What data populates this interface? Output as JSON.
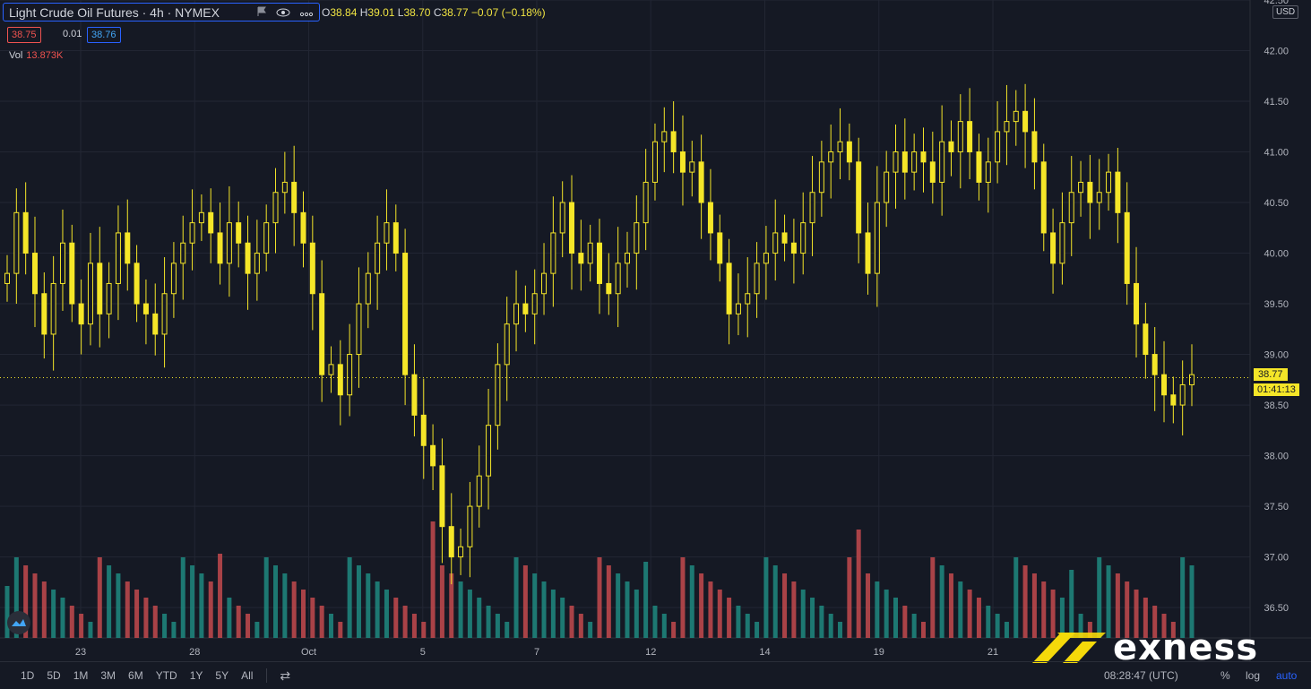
{
  "header": {
    "symbol_title": "Light Crude Oil Futures · 4h · NYMEX",
    "ohlc": {
      "o_label": "O",
      "o": "38.84",
      "h_label": "H",
      "h": "39.01",
      "l_label": "L",
      "l": "38.70",
      "c_label": "C",
      "c": "38.77",
      "change": "−0.07 (−0.18%)"
    },
    "bid": "38.75",
    "spread": "0.01",
    "ask": "38.76",
    "vol_label": "Vol",
    "vol_value": "13.873K",
    "currency": "USD"
  },
  "markers": {
    "last_price": "38.77",
    "countdown": "01:41:13"
  },
  "bottom_bar": {
    "ranges": [
      "1D",
      "5D",
      "1M",
      "3M",
      "6M",
      "YTD",
      "1Y",
      "5Y",
      "All"
    ],
    "clock": "08:28:47 (UTC)",
    "percent": "%",
    "log": "log",
    "auto": "auto"
  },
  "branding": {
    "watermark": "exness",
    "brand_color": "#f5d90a"
  },
  "colors": {
    "up": "#f5e628",
    "down": "#f5e628",
    "vol_up": "#1f8a80",
    "vol_down": "#c34a4e",
    "bg": "#151924",
    "grid": "#222633",
    "axis_text": "#b2b5be"
  },
  "chart_data": {
    "type": "candlestick",
    "title": "Light Crude Oil Futures · 4h · NYMEX",
    "ylim": [
      36.2,
      42.5
    ],
    "y_ticks": [
      "42.50",
      "42.00",
      "41.50",
      "41.00",
      "40.50",
      "40.00",
      "39.50",
      "39.00",
      "38.50",
      "38.00",
      "37.50",
      "37.00",
      "36.50"
    ],
    "x_ticks": [
      "23",
      "28",
      "Oct",
      "5",
      "7",
      "12",
      "14",
      "19",
      "21"
    ],
    "closes": [
      39.8,
      40.4,
      40.0,
      39.6,
      39.2,
      39.7,
      40.1,
      39.5,
      39.3,
      39.9,
      39.4,
      39.7,
      40.2,
      39.9,
      39.5,
      39.4,
      39.2,
      39.6,
      39.9,
      40.1,
      40.3,
      40.4,
      40.2,
      39.9,
      40.3,
      40.1,
      39.8,
      40.0,
      40.3,
      40.6,
      40.7,
      40.4,
      40.1,
      39.6,
      38.8,
      38.9,
      38.6,
      39.0,
      39.5,
      39.8,
      40.1,
      40.3,
      40.0,
      38.8,
      38.4,
      38.1,
      37.9,
      37.3,
      37.0,
      37.1,
      37.5,
      37.8,
      38.3,
      38.9,
      39.3,
      39.5,
      39.4,
      39.6,
      39.8,
      40.2,
      40.5,
      40.0,
      39.9,
      40.1,
      39.7,
      39.6,
      39.9,
      40.0,
      40.3,
      40.7,
      41.1,
      41.2,
      41.0,
      40.8,
      40.9,
      40.5,
      40.2,
      39.9,
      39.4,
      39.5,
      39.6,
      39.9,
      40.0,
      40.2,
      40.1,
      40.0,
      40.3,
      40.6,
      40.9,
      41.0,
      41.1,
      40.9,
      40.2,
      39.8,
      40.5,
      40.8,
      41.0,
      40.8,
      41.0,
      40.9,
      40.7,
      41.1,
      41.0,
      41.3,
      41.0,
      40.7,
      40.9,
      41.2,
      41.3,
      41.4,
      41.2,
      40.9,
      40.2,
      39.9,
      40.3,
      40.6,
      40.7,
      40.5,
      40.6,
      40.8,
      40.4,
      39.7,
      39.3,
      39.0,
      38.8,
      38.6,
      38.5,
      38.7,
      38.8
    ]
  }
}
